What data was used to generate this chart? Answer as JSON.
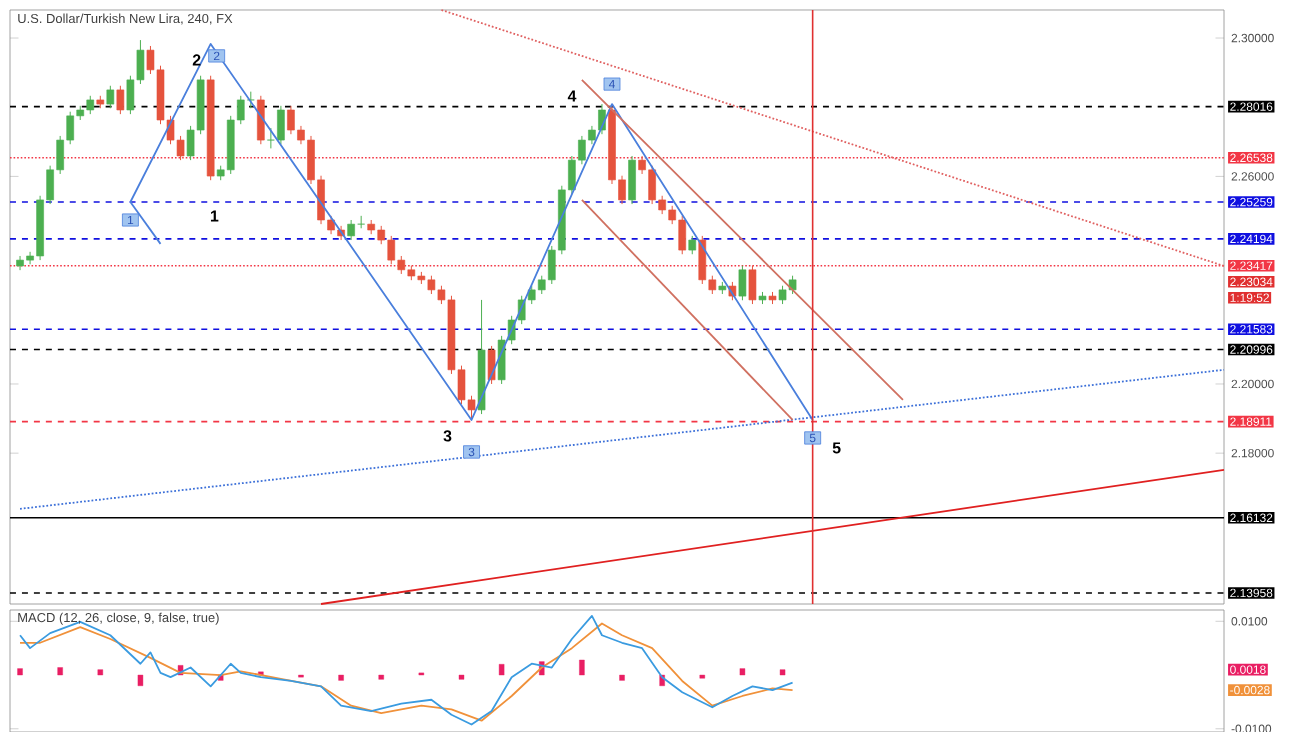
{
  "chart_data": [
    {
      "type": "candlestick",
      "title": "U.S. Dollar/Turkish New Lira, 240, FX",
      "categories": [
        null,
        null,
        null,
        null,
        null,
        null,
        null,
        null,
        null,
        null,
        null,
        null,
        null,
        null,
        null,
        null,
        null,
        null,
        null,
        null,
        null,
        null,
        null,
        null,
        null,
        null,
        null,
        null,
        null,
        null,
        null,
        null,
        null,
        null,
        null,
        null,
        null,
        null,
        null,
        null,
        null,
        null,
        null,
        null,
        null,
        null,
        null,
        null,
        null,
        null,
        null,
        null,
        null,
        null,
        null,
        null,
        null,
        null,
        null,
        null,
        null,
        null,
        null,
        null,
        null,
        null,
        null,
        null,
        null,
        null,
        null,
        null,
        null,
        null,
        null,
        null,
        null,
        null,
        null,
        null,
        null,
        null,
        null,
        null,
        null,
        null,
        null,
        null,
        null,
        null,
        null,
        null,
        null,
        null,
        null,
        null,
        null,
        null,
        null,
        null,
        null,
        null,
        null,
        null,
        null,
        null,
        null,
        null,
        null,
        null,
        null,
        null,
        null,
        null,
        null,
        null,
        null,
        null,
        null,
        null,
        null
      ],
      "ohlc": [
        [
          2.2341,
          2.237,
          2.2329,
          2.2358
        ],
        [
          2.2358,
          2.2382,
          2.2346,
          2.237
        ],
        [
          2.237,
          2.2544,
          2.2358,
          2.2532
        ],
        [
          2.2532,
          2.2631,
          2.252,
          2.2619
        ],
        [
          2.2619,
          2.2717,
          2.2607,
          2.2705
        ],
        [
          2.2705,
          2.2787,
          2.2693,
          2.2775
        ],
        [
          2.2775,
          2.2804,
          2.2763,
          2.2792
        ],
        [
          2.2792,
          2.2833,
          2.278,
          2.2821
        ],
        [
          2.2821,
          2.2833,
          2.2797,
          2.2809
        ],
        [
          2.2809,
          2.2862,
          2.2797,
          2.285
        ],
        [
          2.285,
          2.2862,
          2.278,
          2.2792
        ],
        [
          2.2792,
          2.2891,
          2.278,
          2.2879
        ],
        [
          2.2879,
          2.2994,
          2.2867,
          2.2965
        ],
        [
          2.2965,
          2.2977,
          2.2896,
          2.2908
        ],
        [
          2.2908,
          2.292,
          2.2751,
          2.2763
        ],
        [
          2.2763,
          2.2775,
          2.2693,
          2.2705
        ],
        [
          2.2705,
          2.2717,
          2.2647,
          2.2659
        ],
        [
          2.2659,
          2.2746,
          2.2647,
          2.2734
        ],
        [
          2.2734,
          2.2891,
          2.2722,
          2.2879
        ],
        [
          2.2879,
          2.2891,
          2.2589,
          2.2601
        ],
        [
          2.2601,
          2.2631,
          2.2589,
          2.2619
        ],
        [
          2.2619,
          2.2775,
          2.2607,
          2.2763
        ],
        [
          2.2763,
          2.2833,
          2.2751,
          2.2821
        ],
        [
          2.2821,
          2.2845,
          2.2797,
          2.2821
        ],
        [
          2.2821,
          2.2833,
          2.2693,
          2.2705
        ],
        [
          2.2705,
          2.274,
          2.2681,
          2.2705
        ],
        [
          2.2705,
          2.2804,
          2.2693,
          2.2792
        ],
        [
          2.2792,
          2.2804,
          2.2722,
          2.2734
        ],
        [
          2.2734,
          2.2746,
          2.2693,
          2.2705
        ],
        [
          2.2705,
          2.2717,
          2.2578,
          2.259
        ],
        [
          2.259,
          2.2602,
          2.2462,
          2.2474
        ],
        [
          2.2474,
          2.2486,
          2.2433,
          2.2445
        ],
        [
          2.2445,
          2.2457,
          2.2416,
          2.2428
        ],
        [
          2.2428,
          2.2474,
          2.2416,
          2.2462
        ],
        [
          2.2462,
          2.2486,
          2.245,
          2.2462
        ],
        [
          2.2462,
          2.2474,
          2.2433,
          2.2445
        ],
        [
          2.2445,
          2.2457,
          2.2404,
          2.2416
        ],
        [
          2.2416,
          2.2428,
          2.2346,
          2.2358
        ],
        [
          2.2358,
          2.237,
          2.2318,
          2.233
        ],
        [
          2.233,
          2.2342,
          2.23,
          2.2312
        ],
        [
          2.2312,
          2.2324,
          2.2289,
          2.2301
        ],
        [
          2.2301,
          2.2313,
          2.226,
          2.2272
        ],
        [
          2.2272,
          2.2284,
          2.2231,
          2.2243
        ],
        [
          2.2243,
          2.2255,
          2.2029,
          2.2041
        ],
        [
          2.2041,
          2.2053,
          2.1942,
          2.1954
        ],
        [
          2.1954,
          2.1966,
          2.1896,
          2.1925
        ],
        [
          2.1925,
          2.2243,
          2.1913,
          2.2098
        ],
        [
          2.2098,
          2.211,
          2.2,
          2.2012
        ],
        [
          2.2012,
          2.2139,
          2.2,
          2.2127
        ],
        [
          2.2127,
          2.2197,
          2.2115,
          2.2185
        ],
        [
          2.2185,
          2.2255,
          2.2173,
          2.2243
        ],
        [
          2.2243,
          2.2284,
          2.2231,
          2.2272
        ],
        [
          2.2272,
          2.2313,
          2.226,
          2.2301
        ],
        [
          2.2301,
          2.2399,
          2.2289,
          2.2387
        ],
        [
          2.2387,
          2.2573,
          2.2375,
          2.2561
        ],
        [
          2.2561,
          2.2659,
          2.2549,
          2.2647
        ],
        [
          2.2647,
          2.2717,
          2.2635,
          2.2705
        ],
        [
          2.2705,
          2.2746,
          2.2693,
          2.2734
        ],
        [
          2.2734,
          2.2809,
          2.2722,
          2.2792
        ],
        [
          2.2792,
          2.2804,
          2.2578,
          2.259
        ],
        [
          2.259,
          2.2602,
          2.252,
          2.2532
        ],
        [
          2.2532,
          2.2659,
          2.252,
          2.2647
        ],
        [
          2.2647,
          2.2659,
          2.2607,
          2.2619
        ],
        [
          2.2619,
          2.2631,
          2.252,
          2.2532
        ],
        [
          2.2532,
          2.2544,
          2.2491,
          2.2503
        ],
        [
          2.2503,
          2.2515,
          2.2462,
          2.2474
        ],
        [
          2.2474,
          2.2486,
          2.2375,
          2.2387
        ],
        [
          2.2387,
          2.2428,
          2.2375,
          2.2416
        ],
        [
          2.2416,
          2.2428,
          2.2289,
          2.2301
        ],
        [
          2.2301,
          2.2313,
          2.226,
          2.2272
        ],
        [
          2.2272,
          2.2295,
          2.226,
          2.2283
        ],
        [
          2.2283,
          2.2295,
          2.2242,
          2.2254
        ],
        [
          2.2254,
          2.2342,
          2.2242,
          2.233
        ],
        [
          2.233,
          2.2342,
          2.2231,
          2.2243
        ],
        [
          2.2243,
          2.2266,
          2.2231,
          2.2254
        ],
        [
          2.2254,
          2.2266,
          2.2231,
          2.2243
        ],
        [
          2.2243,
          2.2284,
          2.2231,
          2.2272
        ],
        [
          2.2272,
          2.2313,
          2.226,
          2.2301
        ],
        null,
        null,
        null,
        null,
        null,
        null,
        null,
        null,
        null,
        null,
        null,
        null,
        null,
        null,
        null,
        null,
        null,
        null,
        null,
        null,
        null,
        null,
        null,
        null,
        null,
        null,
        null,
        null,
        null,
        null,
        null,
        null,
        null,
        null,
        null,
        null,
        null,
        null,
        null,
        null,
        null,
        null,
        null
      ],
      "colors": [
        "#4caf50",
        "#4caf50",
        "#4caf50",
        "#4caf50",
        "#4caf50",
        "#4caf50",
        "#4caf50",
        "#4caf50",
        "#e5533d",
        "#4caf50",
        "#e5533d",
        "#4caf50",
        "#4caf50",
        "#e5533d",
        "#e5533d",
        "#e5533d",
        "#e5533d",
        "#4caf50",
        "#4caf50",
        "#e5533d",
        "#4caf50",
        "#4caf50",
        "#4caf50",
        "#4caf50",
        "#e5533d",
        "#4caf50",
        "#4caf50",
        "#e5533d",
        "#e5533d",
        "#e5533d",
        "#e5533d",
        "#e5533d",
        "#e5533d",
        "#4caf50",
        "#4caf50",
        "#e5533d",
        "#e5533d",
        "#e5533d",
        "#e5533d",
        "#e5533d",
        "#e5533d",
        "#e5533d",
        "#e5533d",
        "#e5533d",
        "#e5533d",
        "#e5533d",
        "#4caf50",
        "#e5533d",
        "#4caf50",
        "#4caf50",
        "#4caf50",
        "#4caf50",
        "#4caf50",
        "#4caf50",
        "#4caf50",
        "#4caf50",
        "#4caf50",
        "#4caf50",
        "#4caf50",
        "#e5533d",
        "#e5533d",
        "#4caf50",
        "#e5533d",
        "#e5533d",
        "#e5533d",
        "#e5533d",
        "#e5533d",
        "#4caf50",
        "#e5533d",
        "#e5533d",
        "#4caf50",
        "#e5533d",
        "#4caf50",
        "#e5533d",
        "#4caf50",
        "#e5533d",
        "#4caf50",
        "#4caf50",
        null,
        null,
        null,
        null,
        null,
        null,
        null,
        null,
        null,
        null,
        null,
        null,
        null,
        null,
        null,
        null,
        null,
        null,
        null,
        null,
        null,
        null,
        null,
        null,
        null,
        null,
        null,
        null,
        null,
        null,
        null,
        null,
        null,
        null,
        null,
        null,
        null,
        null,
        null,
        null,
        null,
        null,
        null
      ],
      "ylim": [
        2.1364,
        2.3081
      ],
      "yticks": [
        {
          "value": 2.18,
          "label": "2.18000"
        },
        {
          "value": 2.2,
          "label": "2.20000"
        },
        {
          "value": 2.26,
          "label": "2.26000"
        },
        {
          "value": 2.3,
          "label": "2.30000"
        }
      ],
      "tick_labels": "y",
      "series": [
        {
          "type": "line",
          "color": "#4a7fdc",
          "line_style": "solid",
          "values": [
            null,
            null,
            null,
            null,
            null,
            null,
            null,
            null,
            null,
            null,
            null,
            2.2526,
            null,
            null,
            null,
            null,
            null,
            null,
            null,
            2.2983,
            null,
            null,
            null,
            null,
            null,
            null,
            null,
            null,
            null,
            null,
            null,
            null,
            null,
            null,
            null,
            null,
            null,
            null,
            null,
            null,
            null,
            null,
            null,
            null,
            null,
            2.1896,
            null,
            null,
            null,
            null,
            null,
            null,
            null,
            null,
            null,
            null,
            null,
            null,
            null,
            2.2809,
            null,
            null,
            null,
            null,
            null,
            null,
            null,
            null,
            null,
            null,
            null,
            null,
            null,
            null,
            null,
            null,
            null,
            null,
            null,
            2.1896,
            null,
            null,
            null,
            null,
            null,
            null,
            null,
            null,
            null,
            null,
            null,
            null,
            null,
            null,
            null,
            null,
            null,
            null,
            null,
            null,
            null,
            null,
            null,
            null,
            null,
            null,
            null,
            null,
            null,
            null,
            null,
            null,
            null,
            null,
            null,
            null,
            null,
            null,
            null,
            null,
            null
          ]
        },
        {
          "type": "line",
          "color": "#4a7fdc",
          "line_style": "solid",
          "values": [
            null,
            null,
            null,
            null,
            null,
            null,
            null,
            null,
            null,
            null,
            null,
            2.2526,
            null,
            null,
            2.2405,
            null,
            null,
            null,
            null,
            null,
            null,
            null,
            null,
            null,
            null,
            null,
            null,
            null,
            null,
            null,
            null,
            null,
            null,
            null,
            null,
            null,
            null,
            null,
            null,
            null,
            null,
            null,
            null,
            null,
            null,
            null,
            null,
            null,
            null,
            null,
            null,
            null,
            null,
            null,
            null,
            null,
            null,
            null,
            null,
            null,
            null,
            null,
            null,
            null,
            null,
            null,
            null,
            null,
            null,
            null,
            null,
            null,
            null,
            null,
            null,
            null,
            null,
            null,
            null,
            null,
            null,
            null,
            null,
            null,
            null,
            null,
            null,
            null,
            null,
            null,
            null,
            null,
            null,
            null,
            null,
            null,
            null,
            null,
            null,
            null,
            null,
            null,
            null,
            null,
            null,
            null,
            null,
            null,
            null,
            null,
            null,
            null,
            null,
            null,
            null,
            null,
            null,
            null,
            null,
            null,
            null
          ]
        },
        {
          "type": "line",
          "color": "#e02020",
          "line_style": "solid",
          "values": [
            null,
            null,
            null,
            null,
            null,
            null,
            null,
            null,
            null,
            null,
            null,
            null,
            null,
            null,
            null,
            null,
            null,
            null,
            null,
            null,
            null,
            null,
            null,
            null,
            null,
            null,
            null,
            null,
            null,
            null,
            2.1364,
            null,
            null,
            null,
            null,
            null,
            null,
            null,
            null,
            null,
            null,
            null,
            null,
            null,
            null,
            null,
            null,
            null,
            null,
            null,
            null,
            null,
            null,
            null,
            null,
            null,
            null,
            null,
            null,
            null,
            null,
            null,
            null,
            null,
            null,
            null,
            null,
            null,
            null,
            null,
            null,
            null,
            null,
            null,
            null,
            null,
            null,
            null,
            null,
            null,
            null,
            null,
            null,
            null,
            null,
            null,
            null,
            null,
            null,
            null,
            null,
            null,
            null,
            null,
            null,
            null,
            null,
            null,
            null,
            null,
            null,
            null,
            null,
            null,
            null,
            null,
            null,
            null,
            null,
            null,
            null,
            null,
            null,
            null,
            null,
            null,
            null,
            null,
            null,
            null,
            2.1752
          ]
        },
        {
          "type": "line",
          "color": "#3b6fd8",
          "line_style": "dotted",
          "values": [
            2.1639,
            null,
            null,
            null,
            null,
            null,
            null,
            null,
            null,
            null,
            null,
            null,
            null,
            null,
            null,
            null,
            null,
            null,
            null,
            null,
            null,
            null,
            null,
            null,
            null,
            null,
            null,
            null,
            null,
            null,
            null,
            null,
            null,
            null,
            null,
            null,
            null,
            null,
            null,
            null,
            null,
            null,
            null,
            null,
            null,
            null,
            null,
            null,
            null,
            null,
            null,
            null,
            null,
            null,
            null,
            null,
            null,
            null,
            null,
            null,
            null,
            null,
            null,
            null,
            null,
            null,
            null,
            null,
            null,
            null,
            null,
            null,
            null,
            null,
            null,
            null,
            null,
            null,
            null,
            null,
            null,
            null,
            null,
            null,
            null,
            null,
            null,
            null,
            null,
            null,
            null,
            null,
            null,
            null,
            null,
            null,
            null,
            null,
            null,
            null,
            null,
            null,
            null,
            null,
            null,
            null,
            null,
            null,
            null,
            null,
            null,
            null,
            null,
            null,
            null,
            null,
            null,
            null,
            null,
            null,
            2.2041
          ]
        },
        {
          "type": "line",
          "color": "#e06060",
          "line_style": "dotted",
          "values": [
            null,
            null,
            null,
            null,
            null,
            null,
            null,
            null,
            null,
            null,
            null,
            null,
            null,
            null,
            null,
            null,
            null,
            null,
            null,
            null,
            null,
            null,
            null,
            null,
            null,
            null,
            null,
            null,
            null,
            null,
            null,
            null,
            null,
            null,
            null,
            null,
            null,
            null,
            null,
            null,
            null,
            null,
            2.3081,
            null,
            null,
            null,
            null,
            null,
            null,
            null,
            null,
            null,
            null,
            null,
            null,
            null,
            null,
            null,
            null,
            null,
            null,
            null,
            null,
            null,
            null,
            null,
            null,
            null,
            null,
            null,
            null,
            null,
            null,
            null,
            null,
            null,
            null,
            null,
            null,
            null,
            null,
            null,
            null,
            null,
            null,
            null,
            null,
            null,
            null,
            null,
            null,
            null,
            null,
            null,
            null,
            null,
            null,
            null,
            null,
            null,
            null,
            null,
            null,
            null,
            null,
            null,
            null,
            null,
            null,
            null,
            null,
            null,
            null,
            null,
            null,
            null,
            null,
            null,
            null,
            null,
            2.2341
          ]
        },
        {
          "type": "line",
          "color": "#d07060",
          "line_style": "solid",
          "values": [
            null,
            null,
            null,
            null,
            null,
            null,
            null,
            null,
            null,
            null,
            null,
            null,
            null,
            null,
            null,
            null,
            null,
            null,
            null,
            null,
            null,
            null,
            null,
            null,
            null,
            null,
            null,
            null,
            null,
            null,
            null,
            null,
            null,
            null,
            null,
            null,
            null,
            null,
            null,
            null,
            null,
            null,
            null,
            null,
            null,
            null,
            null,
            null,
            null,
            null,
            null,
            null,
            null,
            null,
            null,
            null,
            2.2879,
            null,
            null,
            null,
            null,
            null,
            null,
            null,
            null,
            null,
            null,
            null,
            null,
            null,
            null,
            null,
            null,
            null,
            null,
            null,
            null,
            null,
            null,
            null,
            null,
            null,
            null,
            null,
            null,
            null,
            null,
            null,
            2.1954,
            null,
            null,
            null,
            null,
            null,
            null,
            null,
            null,
            null,
            null,
            null,
            null,
            null,
            null,
            null,
            null,
            null,
            null,
            null,
            null,
            null,
            null,
            null,
            null,
            null,
            null,
            null,
            null,
            null,
            null,
            null,
            null
          ]
        },
        {
          "type": "line",
          "color": "#d07060",
          "line_style": "solid",
          "values": [
            null,
            null,
            null,
            null,
            null,
            null,
            null,
            null,
            null,
            null,
            null,
            null,
            null,
            null,
            null,
            null,
            null,
            null,
            null,
            null,
            null,
            null,
            null,
            null,
            null,
            null,
            null,
            null,
            null,
            null,
            null,
            null,
            null,
            null,
            null,
            null,
            null,
            null,
            null,
            null,
            null,
            null,
            null,
            null,
            null,
            null,
            null,
            null,
            null,
            null,
            null,
            null,
            null,
            null,
            null,
            null,
            2.2532,
            null,
            null,
            null,
            null,
            null,
            null,
            null,
            null,
            null,
            null,
            null,
            null,
            null,
            null,
            null,
            null,
            null,
            null,
            null,
            null,
            2.1896,
            null,
            null,
            null,
            null,
            null,
            null,
            null,
            null,
            null,
            null,
            null,
            null,
            null,
            null,
            null,
            null,
            null,
            null,
            null,
            null,
            null,
            null,
            null,
            null,
            null,
            null,
            null,
            null,
            null,
            null,
            null,
            null,
            null,
            null,
            null,
            null,
            null,
            null,
            null,
            null,
            null,
            null,
            null
          ]
        }
      ],
      "ref_lines": [
        {
          "axis": "y",
          "value": 2.28016,
          "label": "2.28016",
          "color": "#000000",
          "line_style": "dashed"
        },
        {
          "axis": "y",
          "value": 2.26538,
          "label": "2.26538",
          "color": "#f23645",
          "line_style": "dotted"
        },
        {
          "axis": "y",
          "value": 2.25259,
          "label": "2.25259",
          "color": "#1010e0",
          "line_style": "dashed"
        },
        {
          "axis": "y",
          "value": 2.24194,
          "label": "2.24194",
          "color": "#1010e0",
          "line_style": "dashed"
        },
        {
          "axis": "y",
          "value": 2.23417,
          "label": "2.23417",
          "color": "#f23645",
          "line_style": "dotted"
        },
        {
          "axis": "y",
          "value": 2.21583,
          "label": "2.21583",
          "color": "#1010e0",
          "line_style": "dashed"
        },
        {
          "axis": "y",
          "value": 2.20996,
          "label": "2.20996",
          "color": "#000000",
          "line_style": "dashed"
        },
        {
          "axis": "y",
          "value": 2.18911,
          "label": "2.18911",
          "color": "#f23645",
          "line_style": "dashed"
        },
        {
          "axis": "y",
          "value": 2.16132,
          "label": "2.16132",
          "color": "#000000",
          "line_style": "solid"
        },
        {
          "axis": "y",
          "value": 2.13958,
          "label": "2.13958",
          "color": "#000000",
          "line_style": "dashed"
        }
      ],
      "annotations": [
        "1",
        "2",
        "3",
        "4",
        "5",
        "1",
        "2",
        "3",
        "4",
        "5",
        "2.23034",
        "1:19:52"
      ]
    },
    {
      "type": "line",
      "title": "MACD (12, 26, close, 9, false, true)",
      "categories": [
        null,
        null,
        null,
        null,
        null,
        null,
        null,
        null,
        null,
        null,
        null,
        null,
        null,
        null,
        null,
        null,
        null,
        null,
        null,
        null,
        null,
        null,
        null,
        null,
        null,
        null,
        null,
        null,
        null,
        null,
        null,
        null,
        null,
        null,
        null,
        null,
        null,
        null,
        null,
        null,
        null,
        null,
        null,
        null,
        null,
        null,
        null,
        null,
        null,
        null,
        null,
        null,
        null,
        null,
        null,
        null,
        null,
        null,
        null,
        null,
        null,
        null,
        null,
        null,
        null,
        null,
        null,
        null,
        null,
        null,
        null,
        null,
        null,
        null,
        null,
        null,
        null,
        null,
        null,
        null,
        null,
        null,
        null,
        null,
        null,
        null,
        null,
        null,
        null,
        null,
        null,
        null,
        null,
        null,
        null,
        null,
        null,
        null,
        null,
        null,
        null,
        null,
        null,
        null,
        null,
        null,
        null,
        null,
        null,
        null,
        null,
        null,
        null,
        null,
        null,
        null,
        null,
        null,
        null,
        null,
        null
      ],
      "ylim": [
        -0.0106,
        0.0121
      ],
      "yticks": [
        {
          "value": -0.01,
          "label": "-0.0100"
        },
        {
          "value": 0.01,
          "label": "0.0100"
        }
      ],
      "tick_labels": "y",
      "series": [
        {
          "type": "bar",
          "color": "#e91e63",
          "values": [
            0.0012,
            null,
            null,
            null,
            0.0014,
            null,
            null,
            null,
            0.001,
            null,
            null,
            null,
            -0.002,
            null,
            null,
            null,
            0.0018,
            null,
            null,
            null,
            -0.001,
            null,
            null,
            null,
            0.0006,
            null,
            null,
            null,
            -0.0004,
            null,
            null,
            null,
            -0.001,
            null,
            null,
            null,
            -0.0008,
            null,
            null,
            null,
            0.0004,
            null,
            null,
            null,
            -0.0008,
            null,
            null,
            null,
            0.002,
            null,
            null,
            null,
            0.0025,
            null,
            null,
            null,
            0.0028,
            null,
            null,
            null,
            -0.001,
            null,
            null,
            null,
            -0.002,
            null,
            null,
            null,
            -0.0006,
            null,
            null,
            null,
            0.0012,
            null,
            null,
            null,
            0.001,
            null,
            null,
            null,
            null,
            null,
            null,
            null,
            null,
            null,
            null,
            null,
            null,
            null,
            null,
            null,
            null,
            null,
            null,
            null,
            null,
            null,
            null,
            null,
            null,
            null,
            null,
            null,
            null,
            null,
            null,
            null,
            null,
            null,
            null,
            null,
            null,
            null,
            null,
            null,
            null,
            null,
            null,
            null,
            null
          ]
        },
        {
          "type": "line",
          "color": "#f0913a",
          "line_style": "solid",
          "values": [
            0.006,
            null,
            0.006,
            null,
            null,
            null,
            0.0089,
            null,
            null,
            0.0067,
            null,
            null,
            null,
            0.0032,
            null,
            null,
            0.0004,
            null,
            null,
            null,
            0,
            null,
            0.0007,
            null,
            null,
            null,
            -0.0007,
            null,
            null,
            null,
            -0.0021,
            null,
            null,
            -0.0057,
            null,
            null,
            -0.0071,
            null,
            null,
            null,
            -0.0057,
            null,
            null,
            -0.0064,
            null,
            null,
            -0.0085,
            null,
            null,
            -0.0039,
            null,
            null,
            0.0014,
            null,
            null,
            0.005,
            null,
            null,
            0.0096,
            null,
            0.0074,
            null,
            null,
            0.005,
            null,
            null,
            -0.0011,
            null,
            null,
            -0.0057,
            null,
            null,
            -0.0039,
            null,
            null,
            -0.0025,
            null,
            -0.0028,
            null,
            null,
            null,
            null,
            null,
            null,
            null,
            null,
            null,
            null,
            null,
            null,
            null,
            null,
            null,
            null,
            null,
            null,
            null,
            null,
            null,
            null,
            null,
            null,
            null,
            null,
            null,
            null,
            null,
            null,
            null,
            null,
            null,
            null,
            null,
            null,
            null,
            null,
            null,
            null,
            null,
            null,
            null
          ]
        },
        {
          "type": "line",
          "color": "#3a9be0",
          "line_style": "solid",
          "values": [
            0.0074,
            0.005,
            null,
            0.0078,
            null,
            null,
            0.0099,
            null,
            null,
            0.0074,
            null,
            null,
            0.0021,
            0.0042,
            0.0004,
            -0.0004,
            null,
            0.0014,
            null,
            -0.0021,
            null,
            0.0021,
            0.0004,
            null,
            -0.0004,
            null,
            null,
            -0.0011,
            null,
            null,
            -0.0021,
            null,
            -0.0057,
            null,
            null,
            -0.0067,
            null,
            null,
            -0.0053,
            null,
            null,
            -0.0046,
            null,
            -0.0074,
            null,
            -0.0092,
            null,
            -0.0067,
            null,
            -0.0004,
            null,
            0.0021,
            null,
            0.0014,
            null,
            0.0067,
            null,
            0.011,
            0.0074,
            null,
            0.006,
            null,
            0.005,
            null,
            -0.0004,
            null,
            -0.0032,
            null,
            null,
            -0.006,
            null,
            -0.0039,
            null,
            -0.0021,
            null,
            -0.0028,
            null,
            -0.0014,
            null,
            null,
            null,
            null,
            null,
            null,
            null,
            null,
            null,
            null,
            null,
            null,
            null,
            null,
            null,
            null,
            null,
            null,
            null,
            null,
            null,
            null,
            null,
            null,
            null,
            null,
            null,
            null,
            null,
            null,
            null,
            null,
            null,
            null,
            null,
            null,
            null,
            null,
            null,
            null,
            null,
            null,
            null
          ]
        }
      ],
      "annotations": [
        "0.0018",
        "-0.0028"
      ]
    }
  ]
}
